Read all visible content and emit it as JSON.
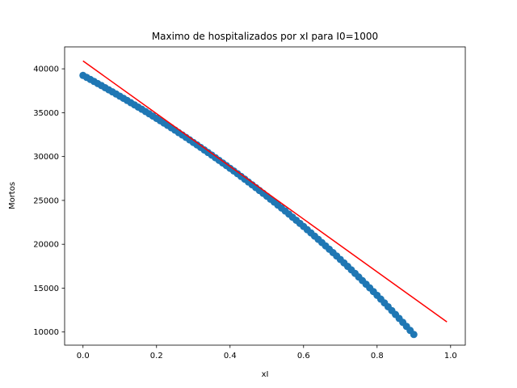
{
  "chart_data": {
    "type": "scatter",
    "title": "Maximo de hospitalizados por xI para I0=1000",
    "xlabel": "xI",
    "ylabel": "Mortos",
    "xlim": [
      -0.05,
      1.04
    ],
    "ylim": [
      8500,
      42500
    ],
    "x_ticks": [
      0.0,
      0.2,
      0.4,
      0.6,
      0.8,
      1.0
    ],
    "x_tick_labels": [
      "0.0",
      "0.2",
      "0.4",
      "0.6",
      "0.8",
      "1.0"
    ],
    "y_ticks": [
      10000,
      15000,
      20000,
      25000,
      30000,
      35000,
      40000
    ],
    "y_tick_labels": [
      "10000",
      "15000",
      "20000",
      "25000",
      "30000",
      "35000",
      "40000"
    ],
    "grid": false,
    "colors": {
      "points": "#1f77b4",
      "fit_line": "#ff0000"
    },
    "scatter_series": {
      "x_start": 0.0,
      "x_step": 0.01,
      "y": [
        39250,
        39020,
        38790,
        38560,
        38320,
        38090,
        37850,
        37610,
        37370,
        37130,
        36880,
        36640,
        36390,
        36140,
        35890,
        35640,
        35390,
        35130,
        34870,
        34610,
        34350,
        34080,
        33820,
        33550,
        33280,
        33010,
        32730,
        32460,
        32180,
        31900,
        31610,
        31330,
        31040,
        30750,
        30460,
        30170,
        29870,
        29570,
        29270,
        28970,
        28660,
        28360,
        28050,
        27730,
        27420,
        27100,
        26780,
        26460,
        26130,
        25810,
        25480,
        25140,
        24810,
        24470,
        24130,
        23790,
        23440,
        23090,
        22740,
        22380,
        22030,
        21660,
        21300,
        20930,
        20560,
        20190,
        19810,
        19430,
        19050,
        18660,
        18270,
        17880,
        17480,
        17080,
        16680,
        16270,
        15860,
        15450,
        15030,
        14610,
        14180,
        13750,
        13320,
        12880,
        12440,
        12000,
        11550,
        11100,
        10640,
        10180,
        9720,
        9250,
        8780,
        8310,
        7830,
        7350,
        6860,
        6370,
        5880,
        5380
      ]
    },
    "scatter_n": 100,
    "fit_line": {
      "x": [
        0.0,
        0.99
      ],
      "y": [
        40900,
        11150
      ]
    }
  }
}
